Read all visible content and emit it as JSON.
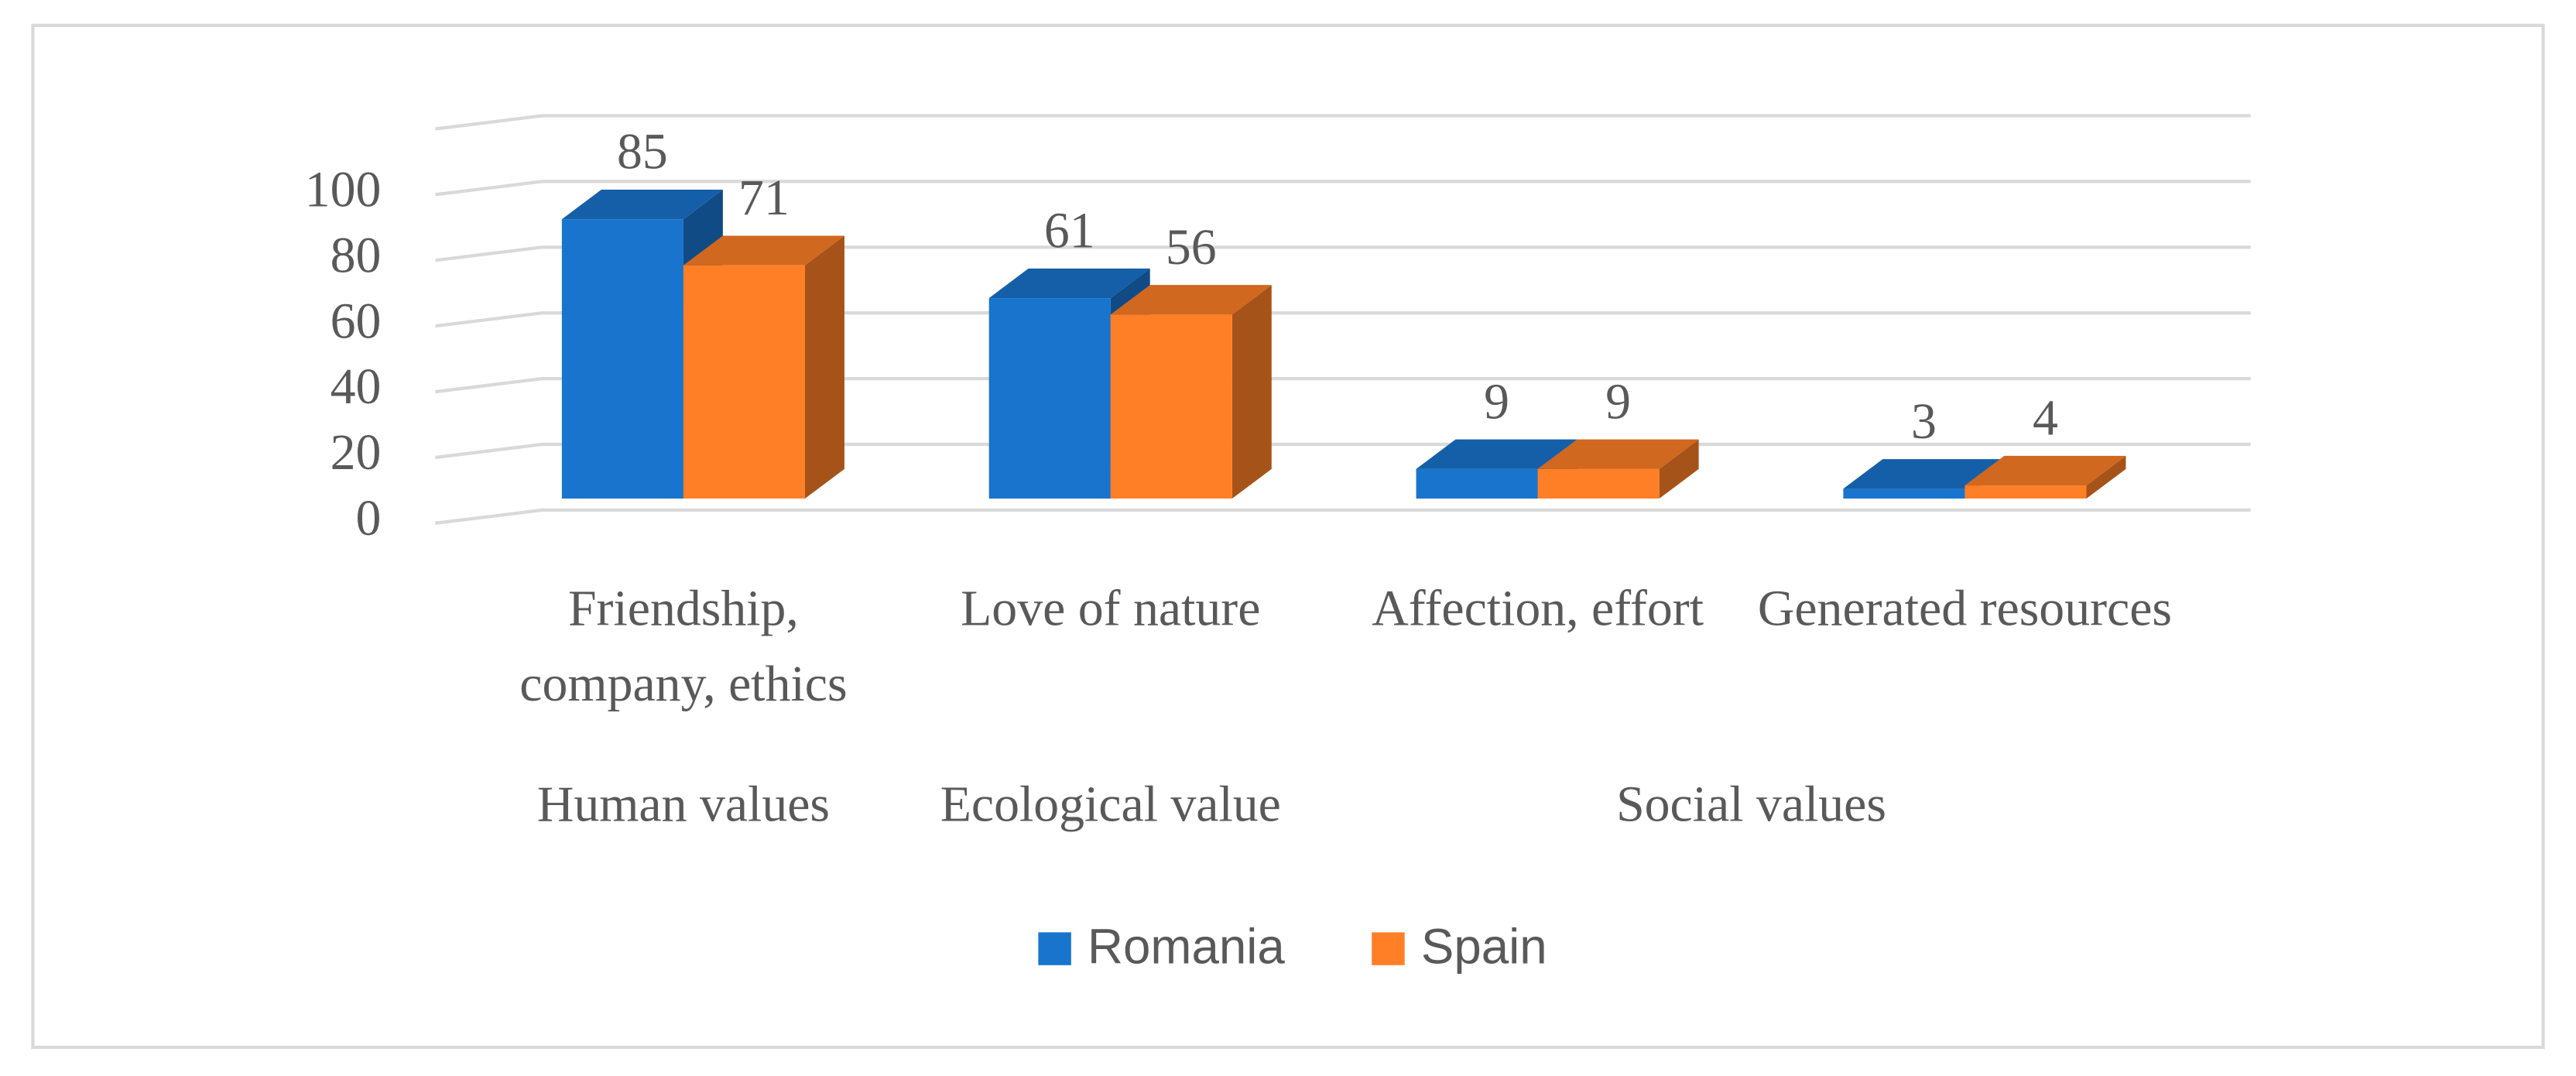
{
  "chart_data": {
    "type": "bar3d",
    "categories": [
      "Friendship, company, ethics",
      "Love of nature",
      "Affection, effort",
      "Generated resources"
    ],
    "groups": [
      {
        "label": "Human values",
        "count": 1
      },
      {
        "label": "Ecological value",
        "count": 1
      },
      {
        "label": "Social values",
        "count": 2
      }
    ],
    "series": [
      {
        "name": "Romania",
        "color": "#1874cd",
        "values": [
          85,
          61,
          9,
          3
        ]
      },
      {
        "name": "Spain",
        "color": "#ff7f27",
        "values": [
          71,
          56,
          9,
          4
        ]
      }
    ],
    "ylim": [
      0,
      120
    ],
    "yticks": [
      0,
      20,
      40,
      60,
      80,
      100
    ],
    "grid": true,
    "legend": "bottom"
  }
}
